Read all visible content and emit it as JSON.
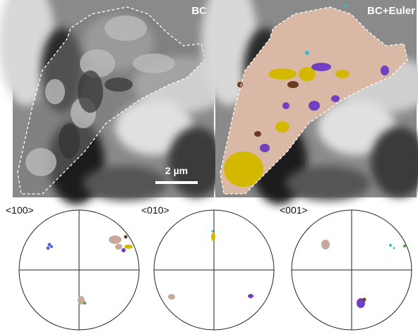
{
  "panels": [
    {
      "label": "BC"
    },
    {
      "label": "BC+Euler"
    }
  ],
  "scale_bar": "2 µm",
  "pole_figures": [
    {
      "label": "<100>"
    },
    {
      "label": "<010>"
    },
    {
      "label": "<001>"
    }
  ]
}
